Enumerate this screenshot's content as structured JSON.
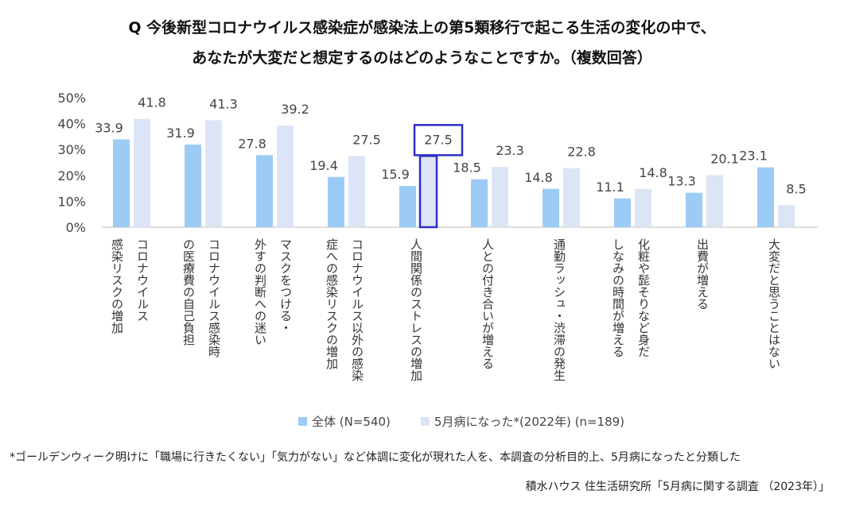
{
  "title_line1": "Q 今後新型コロナウイルス感染症が感染法上の第5類移行で起こる生活の変化の中で、",
  "title_line2": "あなたが大変だと想定するのはどのようなことですか。（複数回答）",
  "footnote": "*ゴールデンウィーク明けに「職場に行きたくない」「気力がない」など体調に変化が現れた人を、本調査の分析目的上、5月病になったと分類した",
  "source": "積水ハウス 住生活研究所「5月病に関する調査 （2023年）」",
  "colors": {
    "series1": "#9ccbf6",
    "series2": "#dce5f5",
    "highlight": "#2e2ec8",
    "axis": "#bbbbbb"
  },
  "chart_data": {
    "type": "bar",
    "ylim": [
      0,
      50
    ],
    "yticks": [
      "0%",
      "10%",
      "20%",
      "30%",
      "40%",
      "50%"
    ],
    "categories": [
      [
        "感染リスクの増加",
        "コロナウイルス"
      ],
      [
        "の医療費の自己負担",
        "コロナウイルス感染時"
      ],
      [
        "外すの判断への迷い",
        "マスクをつける・"
      ],
      [
        "症への感染リスクの増加",
        "コロナウイルス以外の感染"
      ],
      [
        "人間関係のストレスの増加"
      ],
      [
        "人との付き合いが増える"
      ],
      [
        "通勤ラッシュ・渋滞の発生"
      ],
      [
        "しなみの時間が増える",
        "化粧や髭そりなど身だ"
      ],
      [
        "出費が増える"
      ],
      [
        "大変だと思うことはない"
      ]
    ],
    "series": [
      {
        "name": "全体 (N=540)",
        "values": [
          33.9,
          31.9,
          27.8,
          19.4,
          15.9,
          18.5,
          14.8,
          11.1,
          13.3,
          23.1
        ]
      },
      {
        "name": "5月病になった*(2022年) (n=189)",
        "values": [
          41.8,
          41.3,
          39.2,
          27.5,
          27.5,
          23.3,
          22.8,
          14.8,
          20.1,
          8.5
        ]
      }
    ],
    "highlight": {
      "category_index": 4,
      "series_index": 1
    },
    "legend_position": "bottom"
  }
}
